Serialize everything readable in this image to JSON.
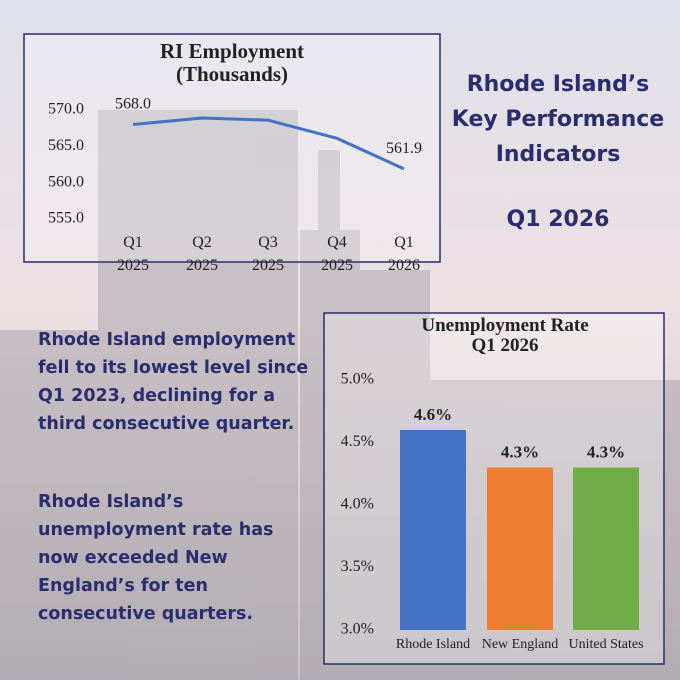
{
  "header": {
    "title": "Rhode Island’s\nKey Performance\nIndicators",
    "period": "Q1 2026"
  },
  "paragraphs": [
    "Rhode Island employment\nfell to its lowest level since\nQ1 2023, declining for a\nthird consecutive quarter.",
    "Rhode Island’s\nunemployment rate has\nnow exceeded New\nEngland’s for ten\nconsecutive quarters."
  ],
  "chart_data": [
    {
      "type": "line",
      "title": "RI Employment\n(Thousands)",
      "categories": [
        "Q1\n2025",
        "Q2\n2025",
        "Q3\n2025",
        "Q4\n2025",
        "Q1\n2026"
      ],
      "values": [
        568.0,
        568.9,
        568.6,
        566.1,
        561.9
      ],
      "value_labels": [
        "568.0",
        null,
        null,
        null,
        "561.9"
      ],
      "color": "#4472c4",
      "ylim": [
        554,
        571
      ],
      "yticks": [
        {
          "value": 555,
          "label": "555.0"
        },
        {
          "value": 560,
          "label": "560.0"
        },
        {
          "value": 565,
          "label": "565.0"
        },
        {
          "value": 570,
          "label": "570.0"
        }
      ]
    },
    {
      "type": "bar",
      "title": "Unemployment Rate\nQ1 2026",
      "categories": [
        "Rhode Island",
        "New England",
        "United States"
      ],
      "values": [
        4.6,
        4.3,
        4.3
      ],
      "value_labels": [
        "4.6%",
        "4.3%",
        "4.3%"
      ],
      "colors": [
        "#4472c4",
        "#ed7d31",
        "#70ad47"
      ],
      "ylim": [
        3.0,
        5.0
      ],
      "yticks": [
        {
          "value": 3.0,
          "label": "3.0%"
        },
        {
          "value": 3.5,
          "label": "3.5%"
        },
        {
          "value": 4.0,
          "label": "4.0%"
        },
        {
          "value": 4.5,
          "label": "4.5%"
        },
        {
          "value": 5.0,
          "label": "5.0%"
        }
      ]
    }
  ]
}
